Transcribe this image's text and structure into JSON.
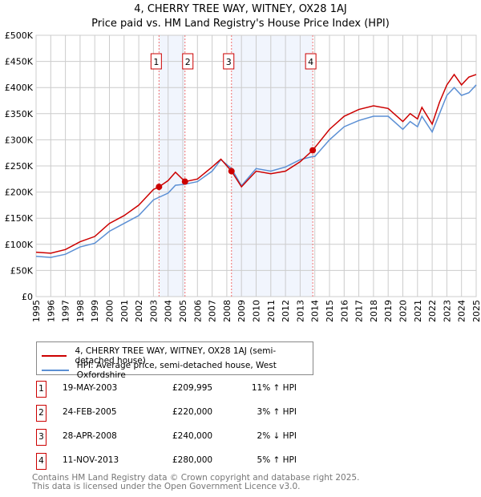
{
  "title": "4, CHERRY TREE WAY, WITNEY, OX28 1AJ",
  "subtitle": "Price paid vs. HM Land Registry's House Price Index (HPI)",
  "chart_data": {
    "type": "line",
    "xlim": [
      1995,
      2025
    ],
    "ylim": [
      0,
      500000
    ],
    "y_ticks": [
      0,
      50000,
      100000,
      150000,
      200000,
      250000,
      300000,
      350000,
      400000,
      450000,
      500000
    ],
    "y_tick_labels": [
      "£0",
      "£50K",
      "£100K",
      "£150K",
      "£200K",
      "£250K",
      "£300K",
      "£350K",
      "£400K",
      "£450K",
      "£500K"
    ],
    "x_ticks": [
      1995,
      1996,
      1997,
      1998,
      1999,
      2000,
      2001,
      2002,
      2003,
      2004,
      2005,
      2006,
      2007,
      2008,
      2009,
      2010,
      2011,
      2012,
      2013,
      2014,
      2015,
      2016,
      2017,
      2018,
      2019,
      2020,
      2021,
      2022,
      2023,
      2024,
      2025
    ],
    "grid": true,
    "series": [
      {
        "name": "4, CHERRY TREE WAY, WITNEY, OX28 1AJ (semi-detached house)",
        "color": "#cc0000",
        "x": [
          1995,
          1996,
          1997,
          1998,
          1999,
          2000,
          2001,
          2002,
          2003,
          2003.38,
          2004,
          2004.5,
          2005.15,
          2006,
          2007,
          2007.6,
          2008.32,
          2009,
          2010,
          2011,
          2012,
          2013,
          2013.86,
          2014,
          2015,
          2016,
          2017,
          2018,
          2019,
          2020,
          2020.5,
          2021,
          2021.3,
          2022,
          2022.5,
          2023,
          2023.5,
          2024,
          2024.5,
          2025
        ],
        "y": [
          85000,
          83000,
          90000,
          105000,
          115000,
          140000,
          155000,
          175000,
          205000,
          209995,
          222000,
          238000,
          220000,
          225000,
          248000,
          263000,
          240000,
          210000,
          240000,
          235000,
          240000,
          258000,
          280000,
          285000,
          320000,
          345000,
          358000,
          365000,
          360000,
          335000,
          350000,
          340000,
          362000,
          330000,
          372000,
          405000,
          425000,
          405000,
          420000,
          425000
        ]
      },
      {
        "name": "HPI: Average price, semi-detached house, West Oxfordshire",
        "color": "#5b8fd4",
        "x": [
          1995,
          1996,
          1997,
          1998,
          1999,
          2000,
          2001,
          2002,
          2003,
          2003.38,
          2004,
          2004.5,
          2005.15,
          2006,
          2007,
          2007.6,
          2008.32,
          2009,
          2010,
          2011,
          2012,
          2013,
          2013.86,
          2014,
          2015,
          2016,
          2017,
          2018,
          2019,
          2020,
          2020.5,
          2021,
          2021.3,
          2022,
          2022.5,
          2023,
          2023.5,
          2024,
          2024.5,
          2025
        ],
        "y": [
          77000,
          75000,
          81000,
          95000,
          102000,
          125000,
          140000,
          155000,
          185000,
          190000,
          198000,
          213000,
          215000,
          220000,
          240000,
          262000,
          245000,
          212000,
          245000,
          240000,
          248000,
          262000,
          268000,
          268000,
          300000,
          325000,
          337000,
          345000,
          345000,
          320000,
          335000,
          325000,
          345000,
          315000,
          350000,
          385000,
          400000,
          385000,
          390000,
          405000
        ]
      }
    ],
    "sales": [
      {
        "label": "1",
        "x": 2003.38,
        "price": 209995,
        "date": "19-MAY-2003",
        "price_text": "£209,995",
        "hpi_text": "11% ↑ HPI"
      },
      {
        "label": "2",
        "x": 2005.15,
        "price": 220000,
        "date": "24-FEB-2005",
        "price_text": "£220,000",
        "hpi_text": "3% ↑ HPI"
      },
      {
        "label": "3",
        "x": 2008.32,
        "price": 240000,
        "date": "28-APR-2008",
        "price_text": "£240,000",
        "hpi_text": "2% ↓ HPI"
      },
      {
        "label": "4",
        "x": 2013.86,
        "price": 280000,
        "date": "11-NOV-2013",
        "price_text": "£280,000",
        "hpi_text": "5% ↑ HPI"
      }
    ]
  },
  "legend": {
    "red": "4, CHERRY TREE WAY, WITNEY, OX28 1AJ (semi-detached house)",
    "blue": "HPI: Average price, semi-detached house, West Oxfordshire"
  },
  "footer": {
    "line1": "Contains HM Land Registry data © Crown copyright and database right 2025.",
    "line2": "This data is licensed under the Open Government Licence v3.0."
  }
}
